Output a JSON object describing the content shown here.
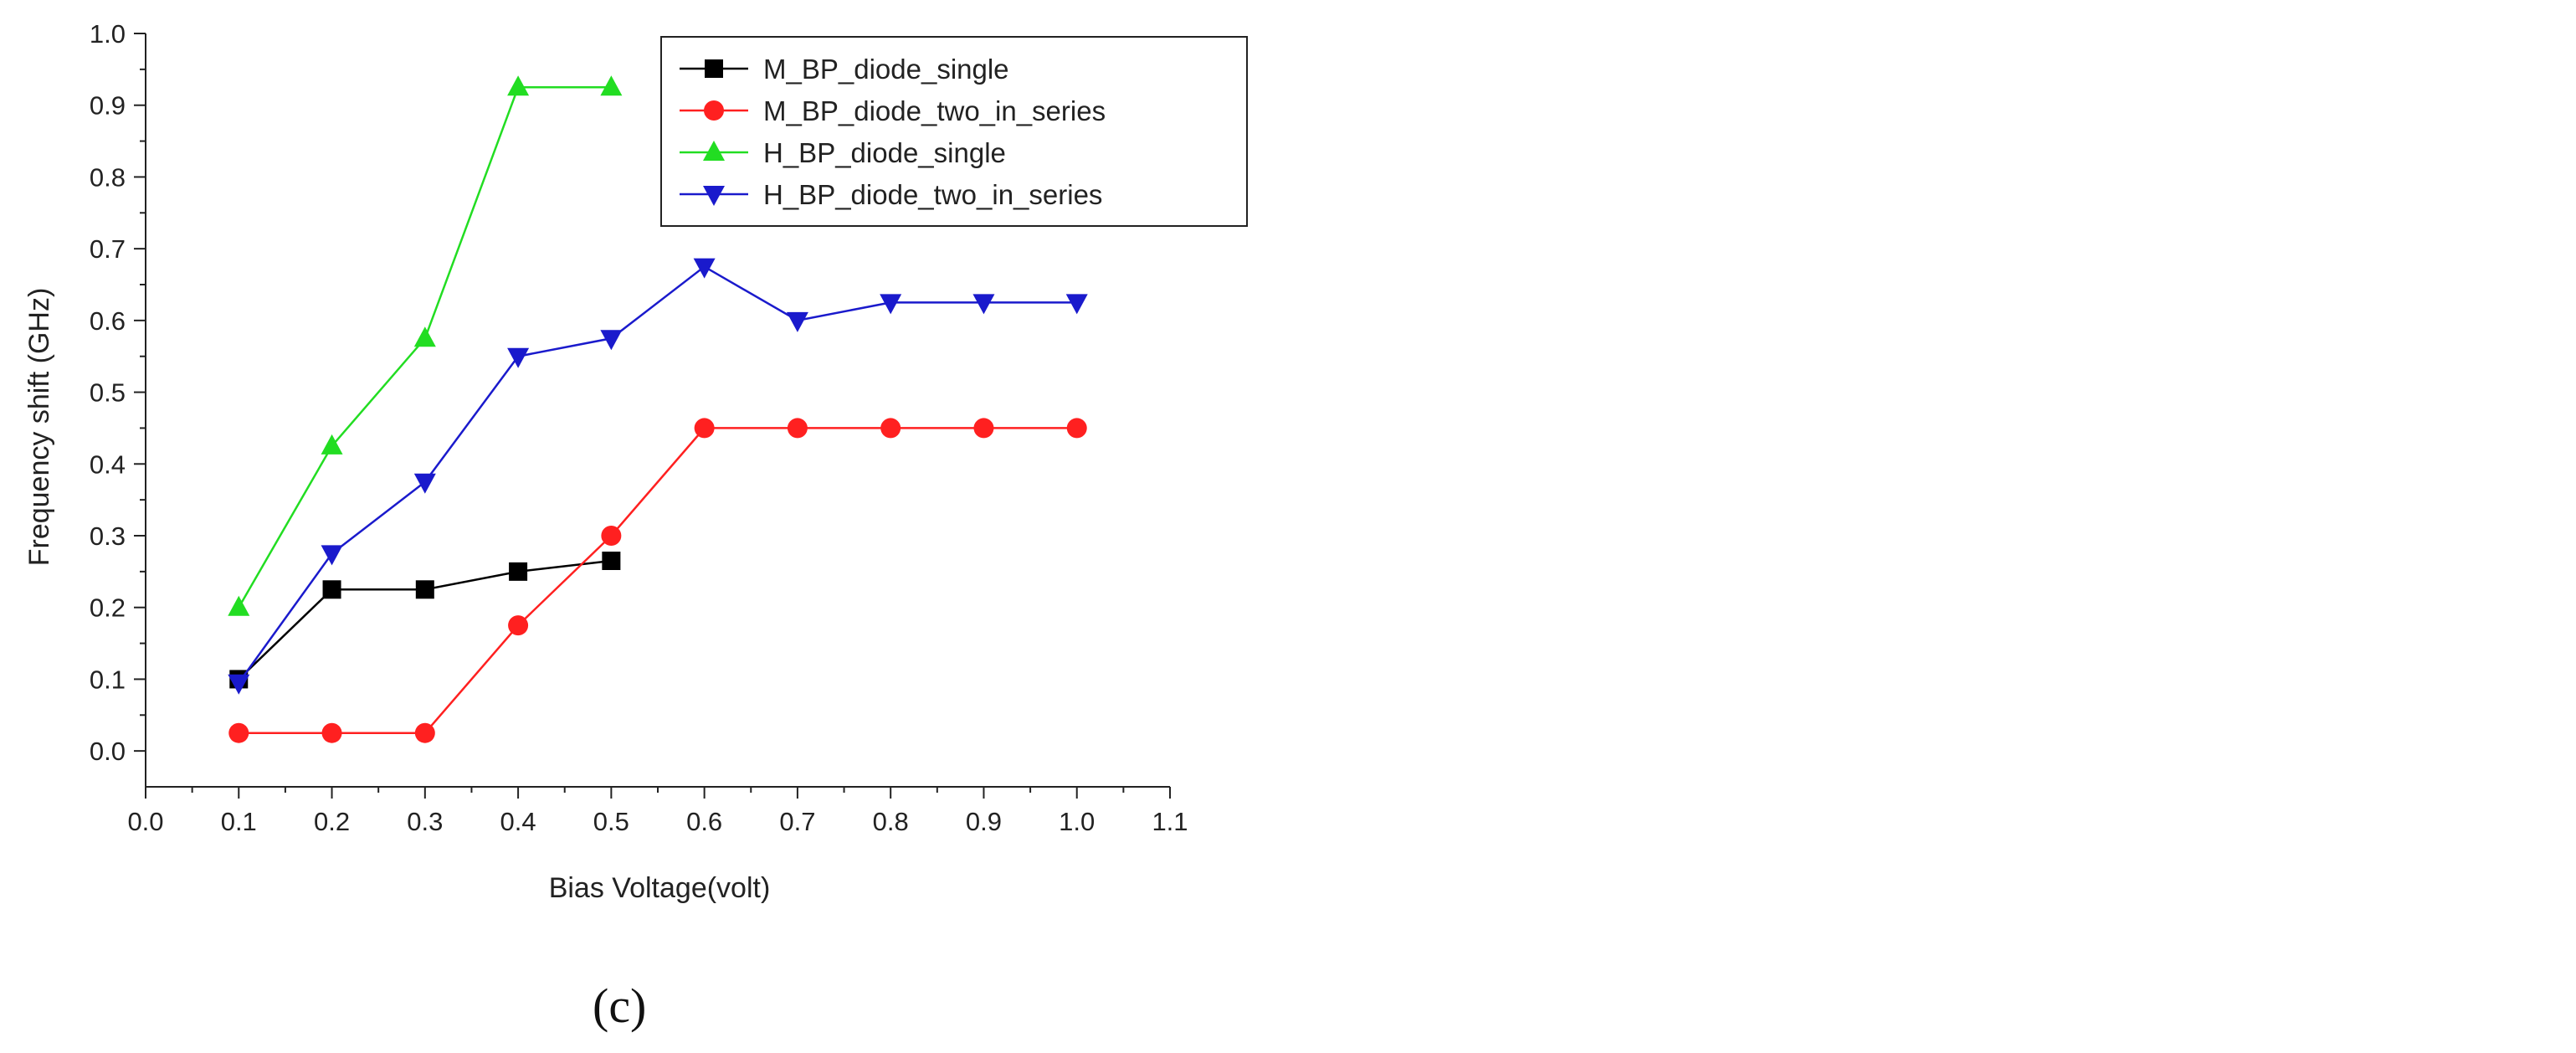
{
  "chart_data": {
    "type": "line",
    "xlabel": "Bias Voltage(volt)",
    "ylabel": "Frequency shift (GHz)",
    "xlim": [
      0.0,
      1.1
    ],
    "ylim": [
      -0.05,
      1.0
    ],
    "x_ticks": [
      "0.0",
      "0.1",
      "0.2",
      "0.3",
      "0.4",
      "0.5",
      "0.6",
      "0.7",
      "0.8",
      "0.9",
      "1.0",
      "1.1"
    ],
    "y_ticks": [
      "0.0",
      "0.1",
      "0.2",
      "0.3",
      "0.4",
      "0.5",
      "0.6",
      "0.7",
      "0.8",
      "0.9",
      "1.0"
    ],
    "grid": false,
    "legend_position": "top-right",
    "series": [
      {
        "name": "M_BP_diode_single",
        "color": "#000000",
        "marker": "square",
        "x": [
          0.1,
          0.2,
          0.3,
          0.4,
          0.5
        ],
        "y": [
          0.1,
          0.225,
          0.225,
          0.25,
          0.265
        ]
      },
      {
        "name": "M_BP_diode_two_in_series",
        "color": "#ff2020",
        "marker": "circle",
        "x": [
          0.1,
          0.2,
          0.3,
          0.4,
          0.5,
          0.6,
          0.7,
          0.8,
          0.9,
          1.0
        ],
        "y": [
          0.025,
          0.025,
          0.025,
          0.175,
          0.3,
          0.45,
          0.45,
          0.45,
          0.45,
          0.45
        ]
      },
      {
        "name": "H_BP_diode_single",
        "color": "#22dd22",
        "marker": "triangle-up",
        "x": [
          0.1,
          0.2,
          0.3,
          0.4,
          0.5
        ],
        "y": [
          0.2,
          0.425,
          0.575,
          0.925,
          0.925
        ]
      },
      {
        "name": "H_BP_diode_two_in_series",
        "color": "#1a1acc",
        "marker": "triangle-down",
        "x": [
          0.1,
          0.2,
          0.3,
          0.4,
          0.5,
          0.6,
          0.7,
          0.8,
          0.9,
          1.0
        ],
        "y": [
          0.095,
          0.275,
          0.375,
          0.55,
          0.575,
          0.675,
          0.6,
          0.625,
          0.625,
          0.625
        ]
      }
    ]
  },
  "panel_label": "(c)"
}
